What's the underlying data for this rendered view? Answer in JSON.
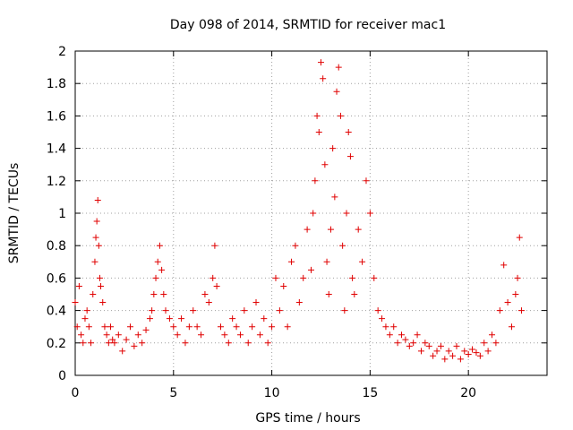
{
  "chart_data": {
    "type": "scatter",
    "title": "Day 098 of 2014, SRMTID for receiver mac1",
    "xlabel": "GPS time / hours",
    "ylabel": "SRMTID / TECUs",
    "xlim": [
      0,
      24
    ],
    "ylim": [
      0,
      2
    ],
    "xticks": [
      0,
      5,
      10,
      15,
      20
    ],
    "yticks": [
      0,
      0.2,
      0.4,
      0.6,
      0.8,
      1,
      1.2,
      1.4,
      1.6,
      1.8,
      2
    ],
    "xtick_labels": [
      "0",
      "5",
      "10",
      "15",
      "20"
    ],
    "ytick_labels": [
      "0",
      "0.2",
      "0.4",
      "0.6",
      "0.8",
      "1",
      "1.2",
      "1.4",
      "1.6",
      "1.8",
      "2"
    ],
    "grid": true,
    "marker": "+",
    "color": "#e00000",
    "series": [
      {
        "name": "SRMTID",
        "x": [
          0.0,
          0.1,
          0.2,
          0.3,
          0.4,
          0.5,
          0.6,
          0.7,
          0.8,
          0.9,
          1.0,
          1.05,
          1.1,
          1.15,
          1.2,
          1.25,
          1.3,
          1.4,
          1.5,
          1.6,
          1.7,
          1.8,
          1.9,
          2.0,
          2.2,
          2.4,
          2.6,
          2.8,
          3.0,
          3.2,
          3.4,
          3.6,
          3.8,
          3.9,
          4.0,
          4.1,
          4.2,
          4.3,
          4.4,
          4.5,
          4.6,
          4.8,
          5.0,
          5.2,
          5.4,
          5.6,
          5.8,
          6.0,
          6.2,
          6.4,
          6.6,
          6.8,
          7.0,
          7.1,
          7.2,
          7.4,
          7.6,
          7.8,
          8.0,
          8.2,
          8.4,
          8.6,
          8.8,
          9.0,
          9.2,
          9.4,
          9.6,
          9.8,
          10.0,
          10.2,
          10.4,
          10.6,
          10.8,
          11.0,
          11.2,
          11.4,
          11.6,
          11.8,
          12.0,
          12.1,
          12.2,
          12.3,
          12.4,
          12.5,
          12.6,
          12.7,
          12.8,
          12.9,
          13.0,
          13.1,
          13.2,
          13.3,
          13.4,
          13.5,
          13.6,
          13.7,
          13.8,
          13.9,
          14.0,
          14.1,
          14.2,
          14.4,
          14.6,
          14.8,
          15.0,
          15.2,
          15.4,
          15.6,
          15.8,
          16.0,
          16.2,
          16.4,
          16.6,
          16.8,
          17.0,
          17.2,
          17.4,
          17.6,
          17.8,
          18.0,
          18.2,
          18.4,
          18.6,
          18.8,
          19.0,
          19.2,
          19.4,
          19.6,
          19.8,
          20.0,
          20.2,
          20.4,
          20.6,
          20.8,
          21.0,
          21.2,
          21.4,
          21.6,
          21.8,
          22.0,
          22.2,
          22.4,
          22.5,
          22.6,
          22.7
        ],
        "y": [
          0.45,
          0.3,
          0.55,
          0.25,
          0.2,
          0.35,
          0.4,
          0.3,
          0.2,
          0.5,
          0.7,
          0.85,
          0.95,
          1.08,
          0.8,
          0.6,
          0.55,
          0.45,
          0.3,
          0.25,
          0.2,
          0.3,
          0.22,
          0.2,
          0.25,
          0.15,
          0.22,
          0.3,
          0.18,
          0.25,
          0.2,
          0.28,
          0.35,
          0.4,
          0.5,
          0.6,
          0.7,
          0.8,
          0.65,
          0.5,
          0.4,
          0.35,
          0.3,
          0.25,
          0.35,
          0.2,
          0.3,
          0.4,
          0.3,
          0.25,
          0.5,
          0.45,
          0.6,
          0.8,
          0.55,
          0.3,
          0.25,
          0.2,
          0.35,
          0.3,
          0.25,
          0.4,
          0.2,
          0.3,
          0.45,
          0.25,
          0.35,
          0.2,
          0.3,
          0.6,
          0.4,
          0.55,
          0.3,
          0.7,
          0.8,
          0.45,
          0.6,
          0.9,
          0.65,
          1.0,
          1.2,
          1.6,
          1.5,
          1.93,
          1.83,
          1.3,
          0.7,
          0.5,
          0.9,
          1.4,
          1.1,
          1.75,
          1.9,
          1.6,
          0.8,
          0.4,
          1.0,
          1.5,
          1.35,
          0.6,
          0.5,
          0.9,
          0.7,
          1.2,
          1.0,
          0.6,
          0.4,
          0.35,
          0.3,
          0.25,
          0.3,
          0.2,
          0.25,
          0.22,
          0.18,
          0.2,
          0.25,
          0.15,
          0.2,
          0.18,
          0.12,
          0.15,
          0.18,
          0.1,
          0.15,
          0.12,
          0.18,
          0.1,
          0.15,
          0.13,
          0.16,
          0.14,
          0.12,
          0.2,
          0.15,
          0.25,
          0.2,
          0.4,
          0.68,
          0.45,
          0.3,
          0.5,
          0.6,
          0.85,
          0.4
        ]
      }
    ]
  }
}
